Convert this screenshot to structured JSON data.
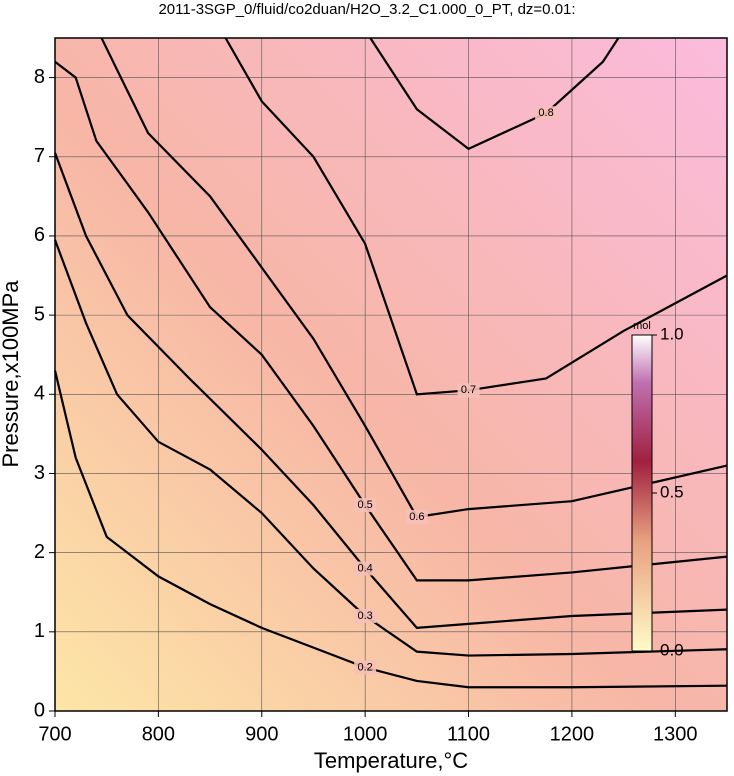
{
  "chart_data": {
    "type": "contour",
    "title": "2011-3SGP_0/fluid/co2duan/H2O_3.2_C1.000_0_PT, dz=0.01:",
    "x_label": "Temperature,°C",
    "y_label": "Pressure,x100MPa",
    "xlim": [
      700,
      1350
    ],
    "ylim": [
      0,
      8.5
    ],
    "xticks": [
      700,
      800,
      900,
      1000,
      1100,
      1200,
      1300
    ],
    "yticks": [
      0,
      1,
      2,
      3,
      4,
      5,
      6,
      7,
      8
    ],
    "grid": true,
    "series": [
      {
        "name": "0.2",
        "x": [
          700,
          720,
          750,
          800,
          850,
          900,
          950,
          1000,
          1050,
          1100,
          1200,
          1350
        ],
        "y": [
          4.3,
          3.2,
          2.2,
          1.7,
          1.35,
          1.05,
          0.8,
          0.55,
          0.38,
          0.3,
          0.3,
          0.32
        ]
      },
      {
        "name": "0.3",
        "x": [
          700,
          730,
          760,
          800,
          850,
          900,
          950,
          1000,
          1050,
          1100,
          1200,
          1350
        ],
        "y": [
          5.95,
          4.9,
          4.0,
          3.4,
          3.05,
          2.5,
          1.8,
          1.2,
          0.75,
          0.7,
          0.72,
          0.78
        ]
      },
      {
        "name": "0.4",
        "x": [
          700,
          730,
          770,
          830,
          900,
          950,
          1000,
          1050,
          1100,
          1200,
          1350
        ],
        "y": [
          7.05,
          6.0,
          5.0,
          4.2,
          3.3,
          2.6,
          1.8,
          1.05,
          1.1,
          1.2,
          1.28
        ]
      },
      {
        "name": "0.5",
        "x": [
          700,
          720,
          740,
          790,
          850,
          900,
          950,
          1000,
          1050,
          1100,
          1200,
          1350
        ],
        "y": [
          8.2,
          8.0,
          7.2,
          6.3,
          5.1,
          4.5,
          3.6,
          2.6,
          1.65,
          1.65,
          1.75,
          1.95
        ]
      },
      {
        "name": "0.6",
        "x": [
          745,
          790,
          850,
          900,
          950,
          1000,
          1050,
          1100,
          1200,
          1350
        ],
        "y": [
          8.5,
          7.3,
          6.5,
          5.6,
          4.7,
          3.6,
          2.45,
          2.55,
          2.65,
          3.1
        ]
      },
      {
        "name": "0.7",
        "x": [
          865,
          900,
          950,
          1000,
          1050,
          1100,
          1175,
          1250,
          1350
        ],
        "y": [
          8.5,
          7.7,
          7.0,
          5.9,
          4.0,
          4.05,
          4.2,
          4.8,
          5.5
        ]
      },
      {
        "name": "0.8",
        "x": [
          1005,
          1050,
          1100,
          1175,
          1230,
          1245
        ],
        "y": [
          8.5,
          7.6,
          7.1,
          7.55,
          8.2,
          8.5
        ]
      }
    ],
    "colorbar": {
      "label": "mol",
      "lim": [
        0,
        1
      ],
      "ticks": [
        {
          "value": 0,
          "label": "0.0"
        },
        0.5,
        {
          "value": 1,
          "label": "1.0"
        }
      ]
    }
  }
}
